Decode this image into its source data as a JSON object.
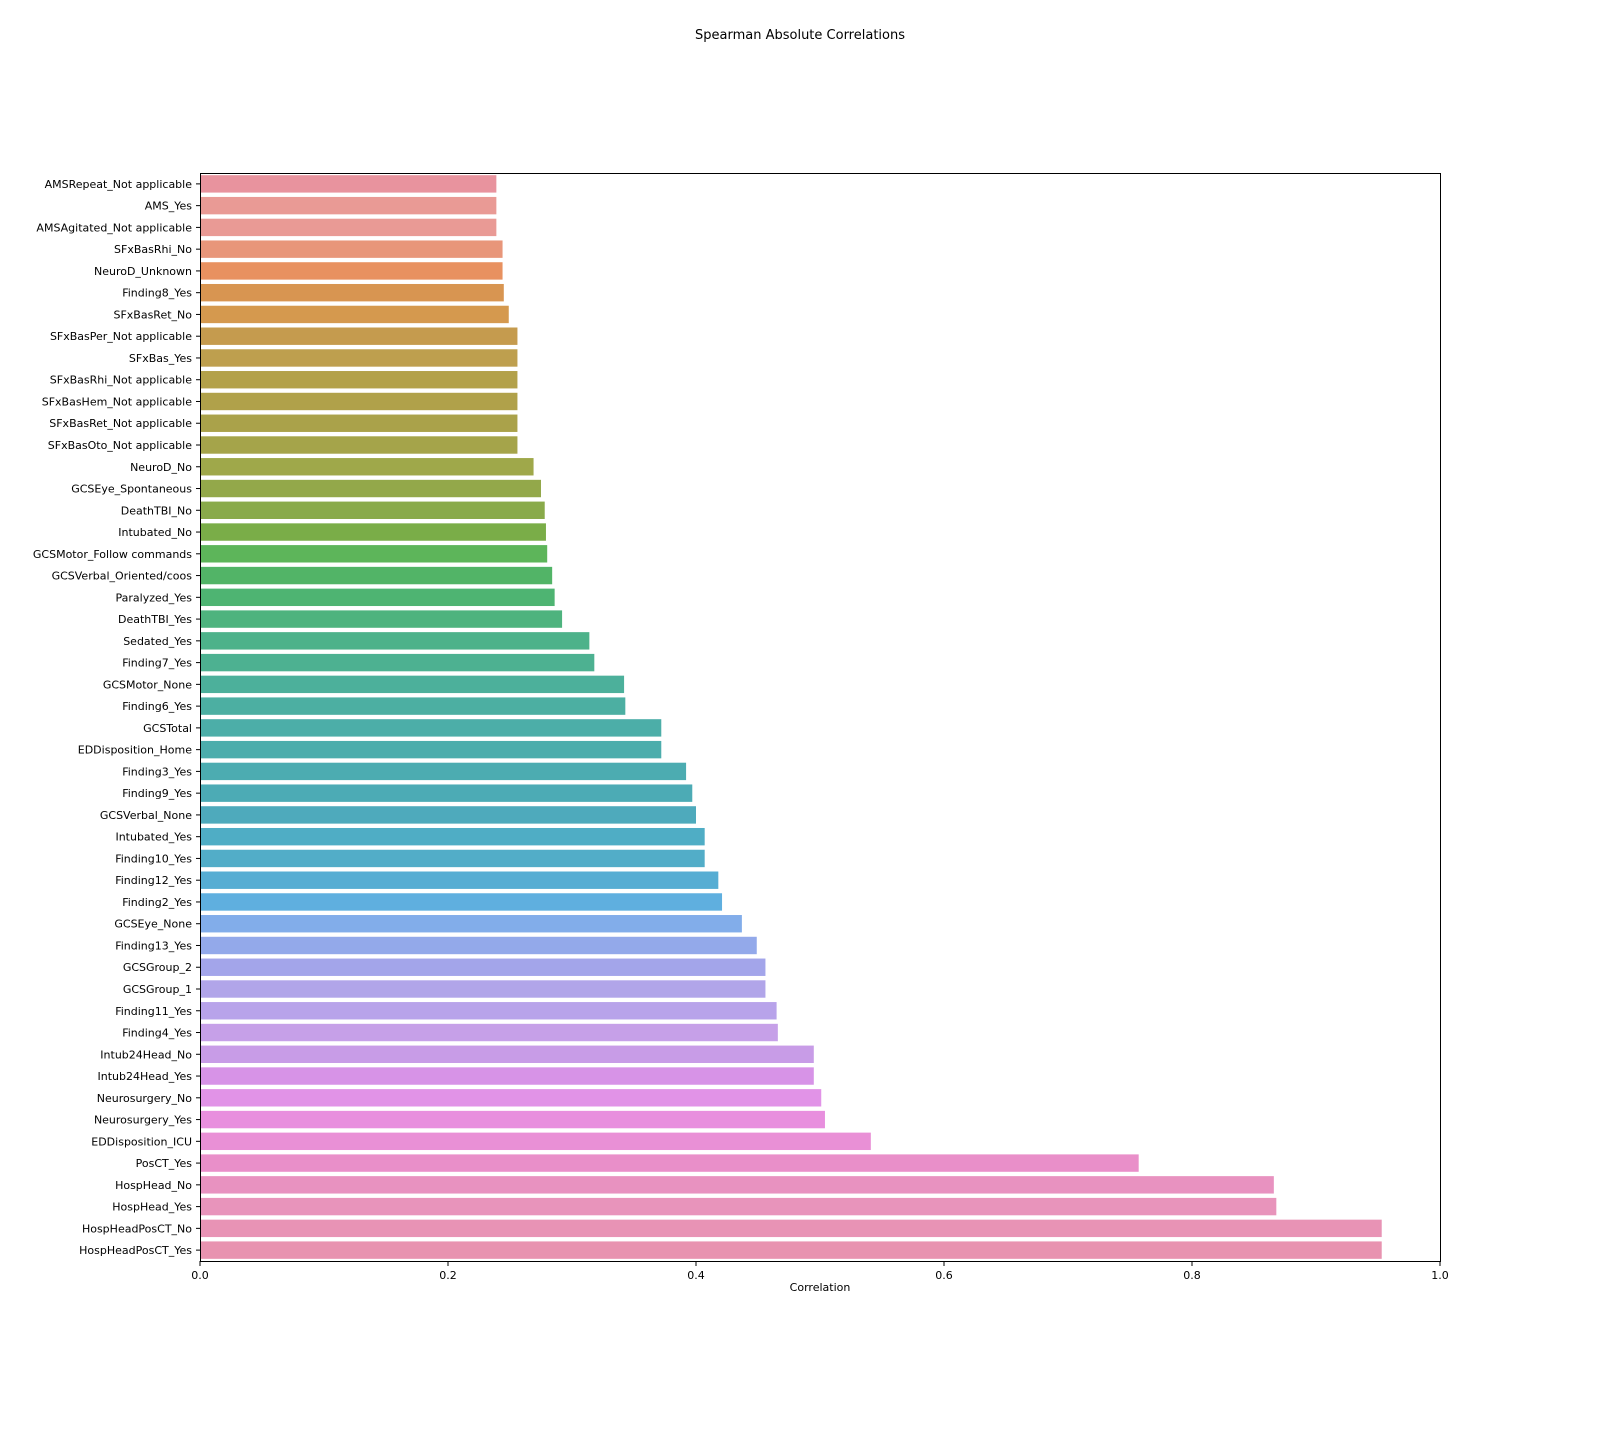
{
  "chart_data": {
    "type": "bar",
    "orientation": "horizontal",
    "title": "Spearman Absolute Correlations",
    "xlabel": "Correlation",
    "ylabel": "",
    "xlim": [
      0.0,
      1.0
    ],
    "xticks": [
      "0.0",
      "0.2",
      "0.4",
      "0.6",
      "0.8",
      "1.0"
    ],
    "grid": false,
    "legend": "none",
    "palette": "husl",
    "categories": [
      "AMSRepeat_Not applicable",
      "AMS_Yes",
      "AMSAgitated_Not applicable",
      "SFxBasRhi_No",
      "NeuroD_Unknown",
      "Finding8_Yes",
      "SFxBasRet_No",
      "SFxBasPer_Not applicable",
      "SFxBas_Yes",
      "SFxBasRhi_Not applicable",
      "SFxBasHem_Not applicable",
      "SFxBasRet_Not applicable",
      "SFxBasOto_Not applicable",
      "NeuroD_No",
      "GCSEye_Spontaneous",
      "DeathTBI_No",
      "Intubated_No",
      "GCSMotor_Follow commands",
      "GCSVerbal_Oriented/coos",
      "Paralyzed_Yes",
      "DeathTBI_Yes",
      "Sedated_Yes",
      "Finding7_Yes",
      "GCSMotor_None",
      "Finding6_Yes",
      "GCSTotal",
      "EDDisposition_Home",
      "Finding3_Yes",
      "Finding9_Yes",
      "GCSVerbal_None",
      "Intubated_Yes",
      "Finding10_Yes",
      "Finding12_Yes",
      "Finding2_Yes",
      "GCSEye_None",
      "Finding13_Yes",
      "GCSGroup_2",
      "GCSGroup_1",
      "Finding11_Yes",
      "Finding4_Yes",
      "Intub24Head_No",
      "Intub24Head_Yes",
      "Neurosurgery_No",
      "Neurosurgery_Yes",
      "EDDisposition_ICU",
      "PosCT_Yes",
      "HospHead_No",
      "HospHead_Yes",
      "HospHeadPosCT_No",
      "HospHeadPosCT_Yes"
    ],
    "values": [
      0.239,
      0.239,
      0.239,
      0.244,
      0.244,
      0.245,
      0.249,
      0.256,
      0.256,
      0.256,
      0.256,
      0.256,
      0.256,
      0.269,
      0.275,
      0.278,
      0.279,
      0.28,
      0.284,
      0.286,
      0.292,
      0.314,
      0.318,
      0.342,
      0.343,
      0.372,
      0.372,
      0.392,
      0.397,
      0.4,
      0.407,
      0.407,
      0.418,
      0.421,
      0.437,
      0.449,
      0.456,
      0.456,
      0.465,
      0.466,
      0.495,
      0.495,
      0.501,
      0.504,
      0.541,
      0.757,
      0.866,
      0.868,
      0.953,
      0.953
    ],
    "colors": [
      "#e8939e",
      "#e99a95",
      "#e99a95",
      "#e8967a",
      "#e89160",
      "#d89551",
      "#d5994e",
      "#c59b4e",
      "#be9f4e",
      "#b3a14a",
      "#b0a14a",
      "#aaa24a",
      "#a5a44a",
      "#9fa84a",
      "#93a84a",
      "#89aa4a",
      "#7aad48",
      "#5db55a",
      "#52b467",
      "#4eb472",
      "#4eb37e",
      "#4db28a",
      "#4db191",
      "#4cb09b",
      "#4cafa2",
      "#4caea8",
      "#4cadac",
      "#4cacb1",
      "#4cabb5",
      "#4eaabc",
      "#4fadc5",
      "#52adc8",
      "#56add3",
      "#5fafdf",
      "#82adea",
      "#93a9ea",
      "#a3a5ea",
      "#b1a5e9",
      "#b8a3ea",
      "#c6a0e8",
      "#c89ce7",
      "#d793e7",
      "#e193e7",
      "#e88fde",
      "#e990d6",
      "#e98fc9",
      "#e892c0",
      "#e894bb",
      "#e893b5",
      "#e893b0"
    ]
  }
}
